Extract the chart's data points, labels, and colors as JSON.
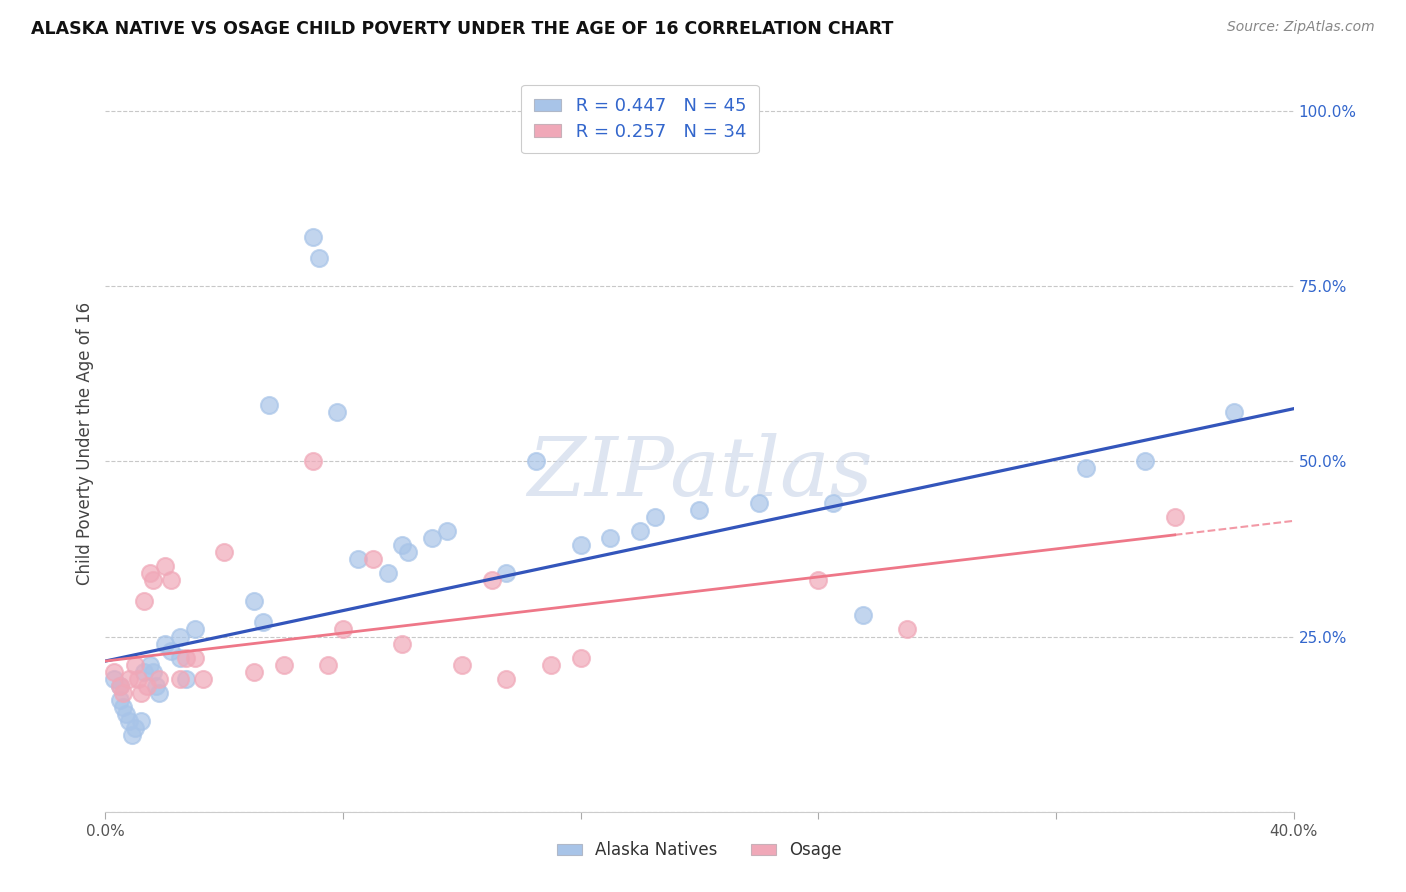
{
  "title": "ALASKA NATIVE VS OSAGE CHILD POVERTY UNDER THE AGE OF 16 CORRELATION CHART",
  "source": "Source: ZipAtlas.com",
  "ylabel": "Child Poverty Under the Age of 16",
  "xmin": 0.0,
  "xmax": 0.4,
  "ymin": 0.0,
  "ymax": 1.05,
  "ytick_vals": [
    0.0,
    0.25,
    0.5,
    0.75,
    1.0
  ],
  "ytick_labels": [
    "",
    "25.0%",
    "50.0%",
    "75.0%",
    "100.0%"
  ],
  "background_color": "#ffffff",
  "grid_color": "#c8c8c8",
  "alaska_color": "#a8c4e8",
  "osage_color": "#f0a8b8",
  "alaska_line_color": "#3355bb",
  "osage_line_color": "#ee7788",
  "legend_r_color": "#3366cc",
  "alaska_R": 0.447,
  "alaska_N": 45,
  "osage_R": 0.257,
  "osage_N": 34,
  "watermark": "ZIPatlas",
  "alaska_x": [
    0.003,
    0.005,
    0.005,
    0.006,
    0.007,
    0.008,
    0.009,
    0.01,
    0.012,
    0.013,
    0.015,
    0.016,
    0.017,
    0.018,
    0.02,
    0.022,
    0.025,
    0.025,
    0.027,
    0.03,
    0.05,
    0.053,
    0.055,
    0.07,
    0.072,
    0.078,
    0.085,
    0.095,
    0.1,
    0.102,
    0.11,
    0.115,
    0.135,
    0.145,
    0.16,
    0.17,
    0.18,
    0.185,
    0.2,
    0.22,
    0.245,
    0.255,
    0.33,
    0.35,
    0.38
  ],
  "alaska_y": [
    0.19,
    0.18,
    0.16,
    0.15,
    0.14,
    0.13,
    0.11,
    0.12,
    0.13,
    0.2,
    0.21,
    0.2,
    0.18,
    0.17,
    0.24,
    0.23,
    0.25,
    0.22,
    0.19,
    0.26,
    0.3,
    0.27,
    0.58,
    0.82,
    0.79,
    0.57,
    0.36,
    0.34,
    0.38,
    0.37,
    0.39,
    0.4,
    0.34,
    0.5,
    0.38,
    0.39,
    0.4,
    0.42,
    0.43,
    0.44,
    0.44,
    0.28,
    0.49,
    0.5,
    0.57
  ],
  "osage_x": [
    0.003,
    0.005,
    0.006,
    0.008,
    0.01,
    0.011,
    0.012,
    0.013,
    0.014,
    0.015,
    0.016,
    0.018,
    0.02,
    0.022,
    0.025,
    0.027,
    0.03,
    0.033,
    0.04,
    0.05,
    0.06,
    0.07,
    0.075,
    0.08,
    0.09,
    0.1,
    0.12,
    0.13,
    0.135,
    0.15,
    0.16,
    0.24,
    0.27,
    0.36
  ],
  "osage_y": [
    0.2,
    0.18,
    0.17,
    0.19,
    0.21,
    0.19,
    0.17,
    0.3,
    0.18,
    0.34,
    0.33,
    0.19,
    0.35,
    0.33,
    0.19,
    0.22,
    0.22,
    0.19,
    0.37,
    0.2,
    0.21,
    0.5,
    0.21,
    0.26,
    0.36,
    0.24,
    0.21,
    0.33,
    0.19,
    0.21,
    0.22,
    0.33,
    0.26,
    0.42
  ],
  "alaska_line_x0": 0.0,
  "alaska_line_y0": 0.215,
  "alaska_line_x1": 0.4,
  "alaska_line_y1": 0.575,
  "osage_line_x0": 0.0,
  "osage_line_y0": 0.215,
  "osage_line_x1": 0.4,
  "osage_line_y1": 0.415
}
